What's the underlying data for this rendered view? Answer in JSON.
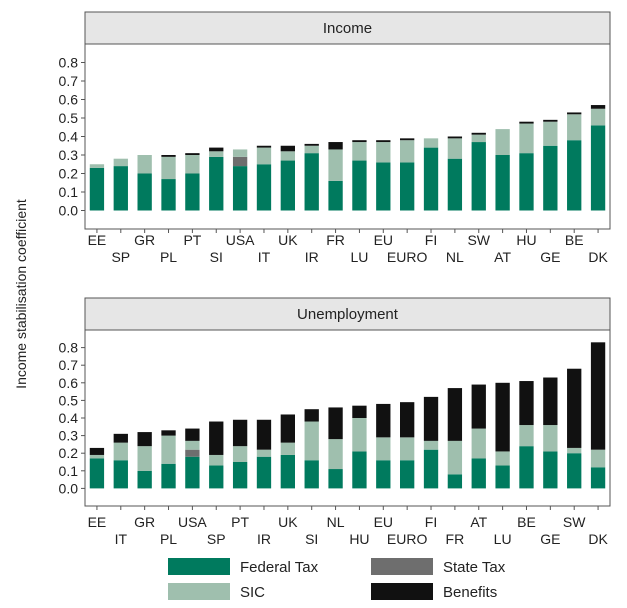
{
  "ylabel": "Income stabilisation coefficient",
  "legend": [
    {
      "name": "Federal Tax",
      "color": "#007a5e"
    },
    {
      "name": "State Tax",
      "color": "#6e6e6e"
    },
    {
      "name": "SIC",
      "color": "#9fbfae"
    },
    {
      "name": "Benefits",
      "color": "#111111"
    }
  ],
  "chart_data": [
    {
      "type": "bar",
      "stacked": true,
      "title": "Income",
      "ylim": [
        -0.1,
        0.9
      ],
      "yticks": [
        "0.8",
        "0.7",
        "0.6",
        "0.5",
        "0.4",
        "0.3",
        "0.2",
        "0.1",
        "0.0"
      ],
      "categories": [
        "EE",
        "SP",
        "GR",
        "PL",
        "PT",
        "SI",
        "USA",
        "IT",
        "UK",
        "IR",
        "FR",
        "LU",
        "EU",
        "EURO",
        "FI",
        "NL",
        "SW",
        "AT",
        "HU",
        "GE",
        "BE",
        "DK"
      ],
      "series": [
        {
          "name": "Federal Tax",
          "values": [
            0.23,
            0.24,
            0.2,
            0.17,
            0.2,
            0.29,
            0.24,
            0.25,
            0.27,
            0.31,
            0.16,
            0.27,
            0.26,
            0.26,
            0.34,
            0.28,
            0.37,
            0.3,
            0.31,
            0.35,
            0.38,
            0.46
          ]
        },
        {
          "name": "State Tax",
          "values": [
            0,
            0,
            0,
            0,
            0,
            0,
            0.05,
            0,
            0,
            0,
            0,
            0,
            0,
            0,
            0,
            0,
            0,
            0,
            0,
            0,
            0,
            0
          ]
        },
        {
          "name": "SIC",
          "values": [
            0.02,
            0.04,
            0.1,
            0.12,
            0.1,
            0.03,
            0.04,
            0.09,
            0.05,
            0.04,
            0.17,
            0.1,
            0.11,
            0.12,
            0.05,
            0.11,
            0.04,
            0.14,
            0.16,
            0.13,
            0.14,
            0.09
          ]
        },
        {
          "name": "Benefits",
          "values": [
            0,
            0,
            0,
            0.01,
            0.01,
            0.02,
            0,
            0.01,
            0.03,
            0.01,
            0.04,
            0.01,
            0.01,
            0.01,
            0,
            0.01,
            0.01,
            0,
            0.01,
            0.01,
            0.01,
            0.02
          ]
        }
      ]
    },
    {
      "type": "bar",
      "stacked": true,
      "title": "Unemployment",
      "ylim": [
        -0.1,
        0.9
      ],
      "yticks": [
        "0.8",
        "0.7",
        "0.6",
        "0.5",
        "0.4",
        "0.3",
        "0.2",
        "0.1",
        "0.0"
      ],
      "categories": [
        "EE",
        "IT",
        "GR",
        "PL",
        "USA",
        "SP",
        "PT",
        "IR",
        "UK",
        "SI",
        "NL",
        "HU",
        "EU",
        "EURO",
        "FI",
        "FR",
        "AT",
        "LU",
        "BE",
        "GE",
        "SW",
        "DK"
      ],
      "series": [
        {
          "name": "Federal Tax",
          "values": [
            0.17,
            0.16,
            0.1,
            0.14,
            0.18,
            0.13,
            0.15,
            0.18,
            0.19,
            0.16,
            0.11,
            0.21,
            0.16,
            0.16,
            0.22,
            0.08,
            0.17,
            0.13,
            0.24,
            0.21,
            0.2,
            0.12
          ]
        },
        {
          "name": "State Tax",
          "values": [
            0,
            0,
            0,
            0,
            0.04,
            0,
            0,
            0,
            0,
            0,
            0,
            0,
            0,
            0,
            0,
            0,
            0,
            0,
            0,
            0,
            0,
            0
          ]
        },
        {
          "name": "SIC",
          "values": [
            0.02,
            0.1,
            0.14,
            0.16,
            0.05,
            0.06,
            0.09,
            0.04,
            0.07,
            0.22,
            0.17,
            0.19,
            0.13,
            0.13,
            0.05,
            0.19,
            0.17,
            0.08,
            0.12,
            0.15,
            0.03,
            0.1
          ]
        },
        {
          "name": "Benefits",
          "values": [
            0.04,
            0.05,
            0.08,
            0.03,
            0.07,
            0.19,
            0.15,
            0.17,
            0.16,
            0.07,
            0.18,
            0.07,
            0.19,
            0.2,
            0.25,
            0.3,
            0.25,
            0.39,
            0.25,
            0.27,
            0.45,
            0.61
          ]
        }
      ]
    }
  ]
}
